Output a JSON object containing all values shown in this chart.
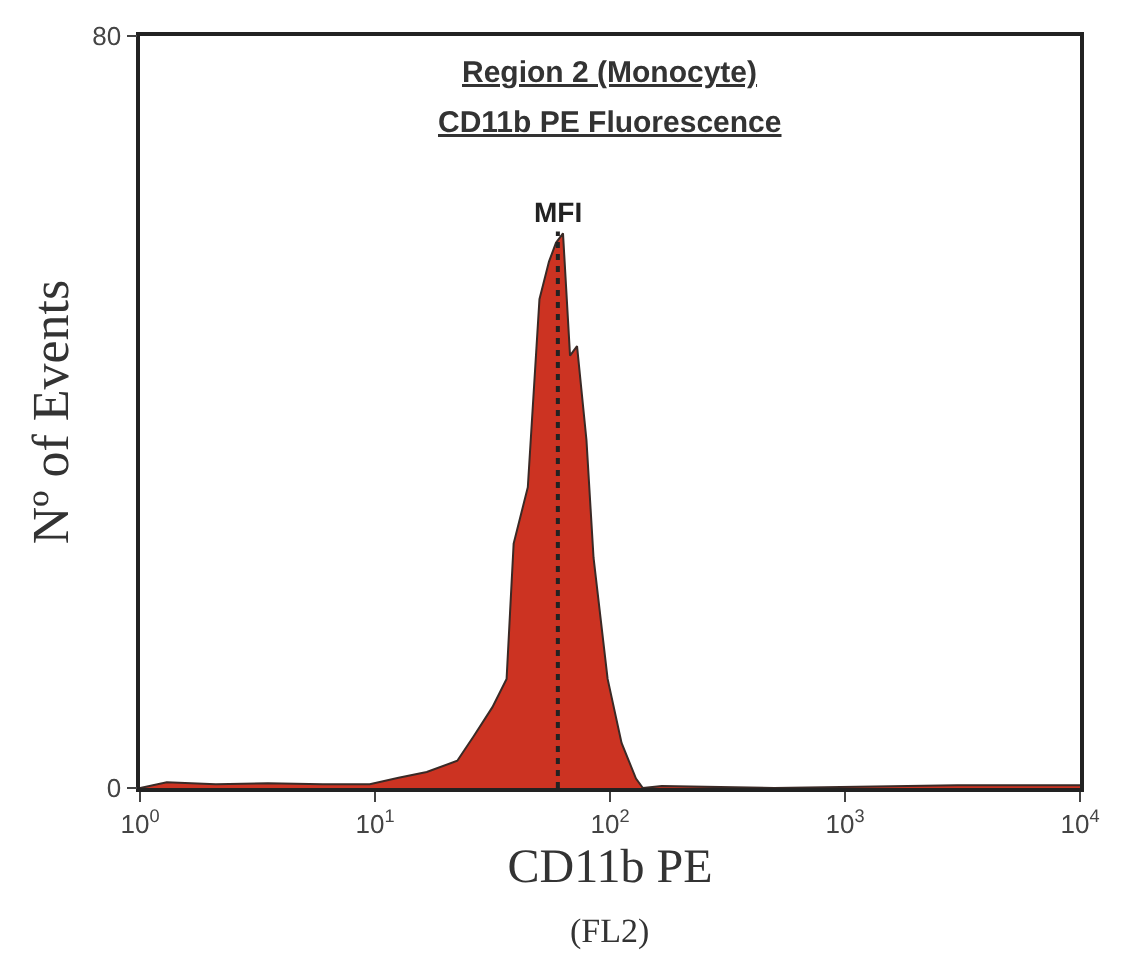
{
  "chart_data": {
    "type": "area",
    "title": "Region 2 (Monocyte)",
    "subtitle": "CD11b PE Fluorescence",
    "xlabel": "CD11b PE",
    "ylabel": "Nº of Events",
    "annotations": [
      "(FL2)"
    ],
    "log": "x",
    "xlim": [
      1,
      10000
    ],
    "ylim": [
      0,
      80
    ],
    "xticks": [
      {
        "value": 1,
        "label": "10$^{0}$"
      },
      {
        "value": 10,
        "label": "10$^{1}$"
      },
      {
        "value": 100,
        "label": "10$^{2}$"
      },
      {
        "value": 1000,
        "label": "10$^{3}$"
      },
      {
        "value": 10000,
        "label": "10$^{4}$"
      }
    ],
    "yticks": [
      0,
      80
    ],
    "x": [
      1,
      1.3,
      2.1,
      3.5,
      6,
      9.5,
      12.6,
      16.6,
      22.4,
      26.3,
      31.6,
      36.3,
      38.9,
      44.7,
      50.1,
      55,
      58.9,
      63.1,
      67.6,
      72.4,
      79.4,
      85.1,
      97.7,
      112,
      129,
      138,
      166,
      500,
      3000,
      10000
    ],
    "series": [
      {
        "color": "#cc3322",
        "values": [
          0,
          0.6,
          0.4,
          0.5,
          0.4,
          0.4,
          1.1,
          1.7,
          2.9,
          5.5,
          8.6,
          11.6,
          26,
          32,
          52,
          56,
          58,
          59,
          46,
          47,
          37,
          24.5,
          11.6,
          4.8,
          1,
          0,
          0.2,
          0,
          0.3,
          0.3
        ]
      }
    ],
    "ref_lines": [
      {
        "axis": "x",
        "value": 60,
        "label": "MFI",
        "color": "#222222",
        "line_style": "dotted"
      }
    ]
  }
}
